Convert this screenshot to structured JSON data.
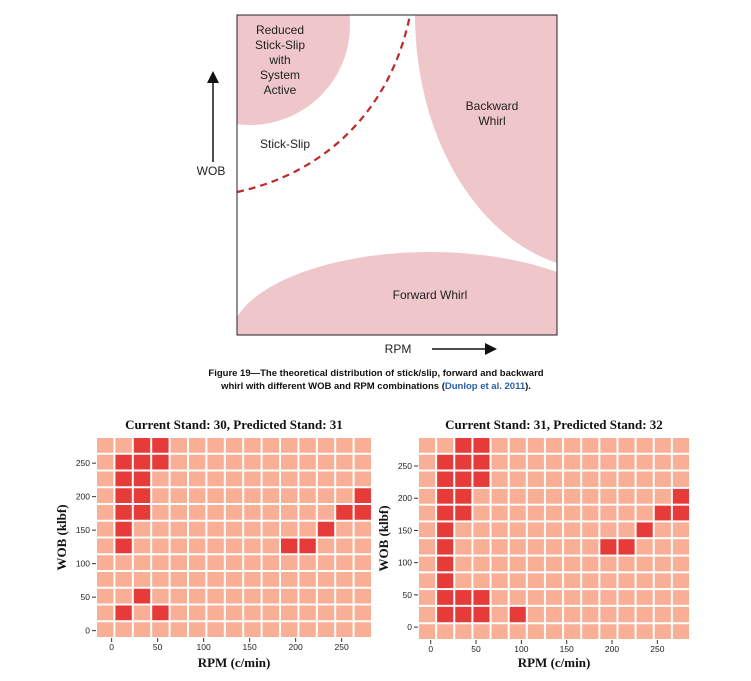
{
  "figure": {
    "labels": {
      "reduced": [
        "Reduced",
        "Stick-Slip",
        "with",
        "System",
        "Active"
      ],
      "stick_slip": "Stick-Slip",
      "backward": [
        "Backward",
        "Whirl"
      ],
      "forward": "Forward Whirl",
      "y_axis": "WOB",
      "x_axis": "RPM"
    },
    "caption_lines": [
      "Figure 19—The theoretical distribution of stick/slip, forward and backward",
      "whirl with different WOB and RPM combinations ("
    ],
    "citation": "Dunlop et al. 2011",
    "caption_end": ")."
  },
  "heatmaps": [
    {
      "type": "heatmap",
      "title": "Current Stand: 30, Predicted Stand: 31",
      "xlabel": "RPM (c/min)",
      "ylabel": "WOB (klbf)",
      "xticks": [
        0,
        50,
        100,
        150,
        200,
        250
      ],
      "yticks": [
        0,
        50,
        100,
        150,
        200,
        250
      ],
      "x_bins": [
        -17,
        3,
        23,
        43,
        63,
        83,
        103,
        123,
        143,
        163,
        183,
        203,
        223,
        243,
        263,
        283
      ],
      "y_bins": [
        -11,
        14,
        39,
        64,
        89,
        114,
        139,
        164,
        189,
        214,
        239,
        264,
        289
      ],
      "colors": {
        "low": "#f9ae96",
        "high": "#e63b38"
      },
      "z": [
        [
          0,
          0,
          0,
          0,
          0,
          0,
          0,
          0,
          0,
          0,
          0,
          0,
          0,
          0,
          0
        ],
        [
          0,
          1,
          0,
          1,
          0,
          0,
          0,
          0,
          0,
          0,
          0,
          0,
          0,
          0,
          0
        ],
        [
          0,
          0,
          1,
          0,
          0,
          0,
          0,
          0,
          0,
          0,
          0,
          0,
          0,
          0,
          0
        ],
        [
          0,
          0,
          0,
          0,
          0,
          0,
          0,
          0,
          0,
          0,
          0,
          0,
          0,
          0,
          0
        ],
        [
          0,
          0,
          0,
          0,
          0,
          0,
          0,
          0,
          0,
          0,
          0,
          0,
          0,
          0,
          0
        ],
        [
          0,
          1,
          0,
          0,
          0,
          0,
          0,
          0,
          0,
          0,
          1,
          1,
          0,
          0,
          0
        ],
        [
          0,
          1,
          0,
          0,
          0,
          0,
          0,
          0,
          0,
          0,
          0,
          0,
          1,
          0,
          0
        ],
        [
          0,
          1,
          1,
          0,
          0,
          0,
          0,
          0,
          0,
          0,
          0,
          0,
          0,
          1,
          1
        ],
        [
          0,
          1,
          1,
          0,
          0,
          0,
          0,
          0,
          0,
          0,
          0,
          0,
          0,
          0,
          1
        ],
        [
          0,
          1,
          1,
          0,
          0,
          0,
          0,
          0,
          0,
          0,
          0,
          0,
          0,
          0,
          0
        ],
        [
          0,
          1,
          1,
          1,
          0,
          0,
          0,
          0,
          0,
          0,
          0,
          0,
          0,
          0,
          0
        ],
        [
          0,
          0,
          1,
          1,
          0,
          0,
          0,
          0,
          0,
          0,
          0,
          0,
          0,
          0,
          0
        ]
      ]
    },
    {
      "type": "heatmap",
      "title": "Current Stand: 31, Predicted Stand: 32",
      "xlabel": "RPM (c/min)",
      "ylabel": "WOB (klbf)",
      "xticks": [
        0,
        50,
        100,
        150,
        200,
        250
      ],
      "yticks": [
        0,
        50,
        100,
        150,
        200,
        250
      ],
      "x_bins": [
        -14,
        6,
        26,
        46,
        66,
        86,
        106,
        126,
        146,
        166,
        186,
        206,
        226,
        246,
        266,
        286
      ],
      "y_bins": [
        -20,
        6,
        33,
        59,
        85,
        111,
        138,
        164,
        190,
        216,
        243,
        269,
        295
      ],
      "colors": {
        "low": "#f9ae96",
        "high": "#e63b38"
      },
      "z": [
        [
          0,
          0,
          0,
          0,
          0,
          0,
          0,
          0,
          0,
          0,
          0,
          0,
          0,
          0,
          0
        ],
        [
          0,
          1,
          1,
          1,
          0,
          1,
          0,
          0,
          0,
          0,
          0,
          0,
          0,
          0,
          0
        ],
        [
          0,
          1,
          1,
          1,
          0,
          0,
          0,
          0,
          0,
          0,
          0,
          0,
          0,
          0,
          0
        ],
        [
          0,
          1,
          0,
          0,
          0,
          0,
          0,
          0,
          0,
          0,
          0,
          0,
          0,
          0,
          0
        ],
        [
          0,
          1,
          0,
          0,
          0,
          0,
          0,
          0,
          0,
          0,
          0,
          0,
          0,
          0,
          0
        ],
        [
          0,
          1,
          0,
          0,
          0,
          0,
          0,
          0,
          0,
          0,
          1,
          1,
          0,
          0,
          0
        ],
        [
          0,
          1,
          0,
          0,
          0,
          0,
          0,
          0,
          0,
          0,
          0,
          0,
          1,
          0,
          0
        ],
        [
          0,
          1,
          1,
          0,
          0,
          0,
          0,
          0,
          0,
          0,
          0,
          0,
          0,
          1,
          1
        ],
        [
          0,
          1,
          1,
          0,
          0,
          0,
          0,
          0,
          0,
          0,
          0,
          0,
          0,
          0,
          1
        ],
        [
          0,
          1,
          1,
          1,
          0,
          0,
          0,
          0,
          0,
          0,
          0,
          0,
          0,
          0,
          0
        ],
        [
          0,
          1,
          1,
          1,
          0,
          0,
          0,
          0,
          0,
          0,
          0,
          0,
          0,
          0,
          0
        ],
        [
          0,
          0,
          1,
          1,
          0,
          0,
          0,
          0,
          0,
          0,
          0,
          0,
          0,
          0,
          0
        ]
      ]
    }
  ]
}
